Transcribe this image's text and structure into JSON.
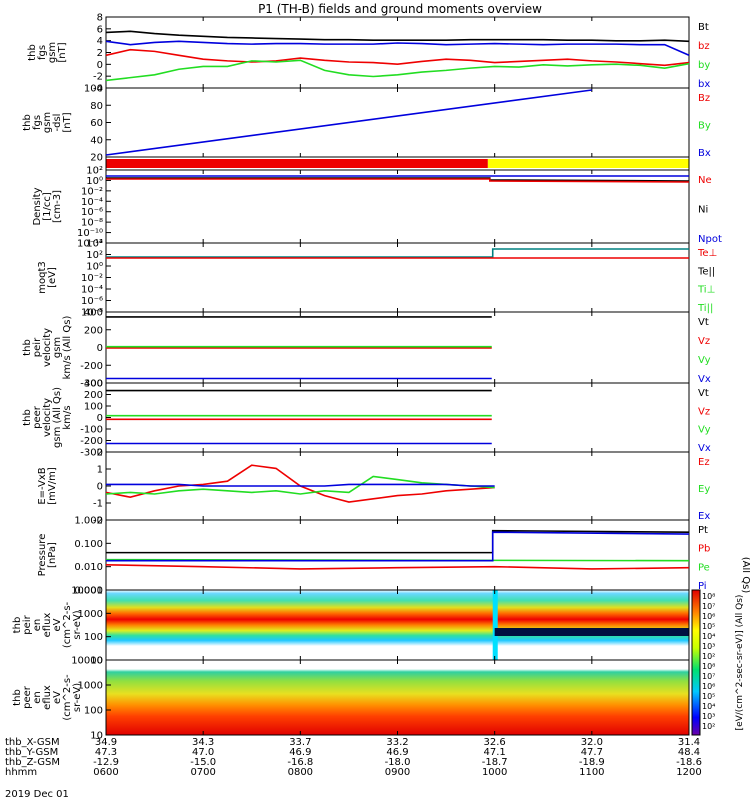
{
  "title": "P1 (TH-B) fields and ground moments overview",
  "date_label": "2019 Dec 01",
  "colors": {
    "black": "#000000",
    "red": "#ee0000",
    "green": "#22dd22",
    "blue": "#0000dd",
    "yellow": "#ffff00",
    "teal": "#008080"
  },
  "ephemeris": {
    "row_labels": [
      "thb_X-GSM",
      "thb_Y-GSM",
      "thb_Z-GSM",
      "hhmm"
    ],
    "columns": [
      {
        "x": "34.9",
        "y": "47.3",
        "z": "-12.9",
        "t": "0600"
      },
      {
        "x": "34.3",
        "y": "47.0",
        "z": "-15.0",
        "t": "0700"
      },
      {
        "x": "33.7",
        "y": "46.9",
        "z": "-16.8",
        "t": "0800"
      },
      {
        "x": "33.2",
        "y": "46.9",
        "z": "-18.0",
        "t": "0900"
      },
      {
        "x": "32.6",
        "y": "47.1",
        "z": "-18.7",
        "t": "1000"
      },
      {
        "x": "32.0",
        "y": "47.7",
        "z": "-18.9",
        "t": "1100"
      },
      {
        "x": "31.4",
        "y": "48.4",
        "z": "-18.6",
        "t": "1200"
      }
    ]
  },
  "colorbar": {
    "ticks": [
      "10⁸",
      "10⁷",
      "10⁶",
      "10⁵",
      "10⁴",
      "10³",
      "10²"
    ],
    "ticks2": [
      "10⁸",
      "10⁷",
      "10⁶",
      "10⁵",
      "10⁴",
      "10³",
      "10²"
    ],
    "label": "[eV/(cm^2-sec-sr-eV)] (All Qs)"
  },
  "chart_data": [
    {
      "type": "line",
      "ylabel": [
        "thb",
        "fgs",
        "gsm",
        "[nT]"
      ],
      "ylim": [
        -4,
        8
      ],
      "yticks": [
        "8",
        "6",
        "4",
        "2",
        "0",
        "-2",
        "-4"
      ],
      "legend": [
        {
          "name": "Bt",
          "color": "#000000"
        },
        {
          "name": "bz",
          "color": "#ee0000"
        },
        {
          "name": "by",
          "color": "#22dd22"
        },
        {
          "name": "bx",
          "color": "#0000dd"
        }
      ],
      "x_hours": [
        6.0,
        6.25,
        6.5,
        6.75,
        7.0,
        7.25,
        7.5,
        7.75,
        8.0,
        8.25,
        8.5,
        8.75,
        9.0,
        9.25,
        9.5,
        9.75,
        10.0,
        10.25,
        10.5,
        10.75,
        11.0,
        11.25,
        11.5,
        11.75,
        12.0
      ],
      "series": [
        {
          "name": "Bt",
          "values": [
            5.6,
            5.8,
            5.4,
            5.1,
            4.9,
            4.7,
            4.6,
            4.5,
            4.4,
            4.3,
            4.3,
            4.2,
            4.2,
            4.2,
            4.2,
            4.3,
            4.3,
            4.3,
            4.3,
            4.2,
            4.2,
            4.1,
            4.1,
            4.2,
            4.0
          ]
        },
        {
          "name": "bz",
          "values": [
            1.5,
            2.5,
            2.2,
            1.5,
            0.8,
            0.5,
            0.3,
            0.5,
            1.0,
            0.6,
            0.3,
            0.2,
            -0.1,
            0.4,
            0.8,
            0.6,
            0.2,
            0.4,
            0.6,
            0.8,
            0.5,
            0.3,
            0.0,
            -0.3,
            0.2
          ]
        },
        {
          "name": "by",
          "values": [
            -3.0,
            -2.5,
            -2.0,
            -1.0,
            -0.5,
            -0.5,
            0.5,
            0.3,
            0.6,
            -1.2,
            -2.0,
            -2.3,
            -2.0,
            -1.5,
            -1.2,
            -0.8,
            -0.5,
            -0.6,
            -0.2,
            -0.4,
            -0.2,
            -0.1,
            -0.3,
            -0.8,
            0.0
          ]
        },
        {
          "name": "bx",
          "values": [
            4.0,
            3.4,
            3.8,
            4.0,
            3.8,
            3.6,
            3.5,
            3.6,
            3.6,
            3.5,
            3.5,
            3.5,
            3.7,
            3.6,
            3.4,
            3.5,
            3.6,
            3.5,
            3.4,
            3.5,
            3.5,
            3.5,
            3.4,
            3.4,
            1.5
          ]
        }
      ]
    },
    {
      "type": "line",
      "ylabel": [
        "thb",
        "fgs",
        "gsm",
        "-dsl",
        "[nT]"
      ],
      "ylim": [
        0,
        100
      ],
      "yticks": [
        "100",
        "80",
        "60",
        "40",
        "20"
      ],
      "legend": [
        {
          "name": "Bz",
          "color": "#ee0000"
        },
        {
          "name": "By",
          "color": "#22dd22"
        },
        {
          "name": "Bx",
          "color": "#0000dd"
        }
      ],
      "series": [
        {
          "name": "Bx",
          "x_hours": [
            6.0,
            11.0
          ],
          "values": [
            0,
            100
          ]
        }
      ]
    },
    {
      "type": "bar",
      "segments": [
        {
          "from": 6.0,
          "to": 9.93,
          "color": "#ee0000"
        },
        {
          "from": 9.93,
          "to": 12.0,
          "color": "#ffff00"
        }
      ]
    },
    {
      "type": "line",
      "scale": "log",
      "ylabel": [
        "Density",
        "[1/cc]",
        "[cm-3]"
      ],
      "yticks": [
        "10²",
        "10⁰",
        "10⁻²",
        "10⁻⁴",
        "10⁻⁶",
        "10⁻⁸",
        "10⁻¹⁰",
        "10⁻¹²"
      ],
      "legend": [
        {
          "name": "Ne",
          "color": "#ee0000"
        },
        {
          "name": "Ni",
          "color": "#000000"
        },
        {
          "name": "Npot",
          "color": "#0000dd"
        }
      ]
    },
    {
      "type": "line",
      "scale": "log",
      "ylabel": [
        "moqt3",
        "[eV]"
      ],
      "yticks": [
        "10⁴",
        "10²",
        "10⁰",
        "10⁻²",
        "10⁻⁴",
        "10⁻⁶",
        "10⁻⁸"
      ],
      "legend": [
        {
          "name": "Te⊥",
          "color": "#ee0000"
        },
        {
          "name": "Te||",
          "color": "#000000"
        },
        {
          "name": "Ti⊥",
          "color": "#22dd22"
        },
        {
          "name": "Ti||",
          "color": "#22dd22"
        }
      ]
    },
    {
      "type": "line",
      "ylabel": [
        "thb",
        "peir",
        "velocity",
        "gsm",
        "km/s (All Qs)"
      ],
      "ylim": [
        -400,
        400
      ],
      "yticks": [
        "400",
        "200",
        "0",
        "-200",
        "-400"
      ],
      "legend": [
        {
          "name": "Vt",
          "color": "#000000"
        },
        {
          "name": "Vz",
          "color": "#ee0000"
        },
        {
          "name": "Vy",
          "color": "#22dd22"
        },
        {
          "name": "Vx",
          "color": "#0000dd"
        }
      ],
      "x_hours": [
        6.0,
        9.97
      ],
      "series": [
        {
          "name": "Vt",
          "values": [
            365,
            365
          ]
        },
        {
          "name": "Vz",
          "values": [
            -5,
            -5
          ]
        },
        {
          "name": "Vy",
          "values": [
            10,
            10
          ]
        },
        {
          "name": "Vx",
          "values": [
            -370,
            -370
          ]
        }
      ]
    },
    {
      "type": "line",
      "ylabel": [
        "thb",
        "peer",
        "velocity",
        "gsm (All Qs)",
        "km/s"
      ],
      "ylim": [
        -350,
        350
      ],
      "yticks": [
        "300",
        "200",
        "100",
        "0",
        "-100",
        "-200",
        "-300"
      ],
      "legend": [
        {
          "name": "Vt",
          "color": "#000000"
        },
        {
          "name": "Vz",
          "color": "#ee0000"
        },
        {
          "name": "Vy",
          "color": "#22dd22"
        },
        {
          "name": "Vx",
          "color": "#0000dd"
        }
      ],
      "x_hours": [
        6.0,
        9.97
      ],
      "series": [
        {
          "name": "Vt",
          "values": [
            290,
            290
          ]
        },
        {
          "name": "Vz",
          "values": [
            -20,
            -20
          ]
        },
        {
          "name": "Vy",
          "values": [
            20,
            20
          ]
        },
        {
          "name": "Vx",
          "values": [
            -280,
            -280
          ]
        }
      ]
    },
    {
      "type": "line",
      "ylabel": [
        "E=-VxB",
        "[mV/m]"
      ],
      "ylim": [
        -2,
        2
      ],
      "yticks": [
        "2",
        "1",
        "0",
        "-1",
        "-2"
      ],
      "legend": [
        {
          "name": "Ez",
          "color": "#ee0000"
        },
        {
          "name": "Ey",
          "color": "#22dd22"
        },
        {
          "name": "Ex",
          "color": "#0000dd"
        }
      ],
      "x_hours": [
        6.0,
        6.25,
        6.5,
        6.75,
        7.0,
        7.25,
        7.5,
        7.75,
        8.0,
        8.25,
        8.5,
        8.75,
        9.0,
        9.25,
        9.5,
        9.75,
        10.0
      ],
      "series": [
        {
          "name": "Ez",
          "values": [
            -0.4,
            -0.7,
            -0.3,
            0.0,
            0.1,
            0.3,
            1.3,
            1.1,
            0.0,
            -0.6,
            -1.0,
            -0.8,
            -0.6,
            -0.5,
            -0.3,
            -0.2,
            -0.1
          ]
        },
        {
          "name": "Ey",
          "values": [
            -0.5,
            -0.4,
            -0.5,
            -0.3,
            -0.2,
            -0.3,
            -0.4,
            -0.3,
            -0.5,
            -0.3,
            -0.4,
            0.6,
            0.4,
            0.2,
            0.1,
            0.0,
            -0.1
          ]
        },
        {
          "name": "Ex",
          "values": [
            0.1,
            0.1,
            0.1,
            0.1,
            0.0,
            0.0,
            0.0,
            0.0,
            0.0,
            0.0,
            0.1,
            0.1,
            0.1,
            0.1,
            0.1,
            0.0,
            0.0
          ]
        }
      ]
    },
    {
      "type": "line",
      "scale": "log",
      "ylabel": [
        "Pressure",
        "[nPa]"
      ],
      "ylim": [
        0.001,
        1.0
      ],
      "yticks": [
        "1.000",
        "0.100",
        "0.010",
        "0.001"
      ],
      "legend": [
        {
          "name": "Pt",
          "color": "#000000"
        },
        {
          "name": "Pb",
          "color": "#ee0000"
        },
        {
          "name": "Pe",
          "color": "#22dd22"
        },
        {
          "name": "Pi",
          "color": "#0000dd"
        }
      ],
      "right_label": "(All Qs)",
      "series": [
        {
          "name": "Pt",
          "x_hours": [
            6.0,
            9.98,
            9.98,
            12.0
          ],
          "values": [
            0.04,
            0.04,
            0.35,
            0.3
          ]
        },
        {
          "name": "Pb",
          "x_hours": [
            6.0,
            7.0,
            8.0,
            9.0,
            10.0,
            11.0,
            12.0
          ],
          "values": [
            0.012,
            0.01,
            0.008,
            0.009,
            0.01,
            0.008,
            0.009
          ]
        },
        {
          "name": "Pe",
          "x_hours": [
            6.0,
            12.0
          ],
          "values": [
            0.02,
            0.018
          ]
        },
        {
          "name": "Pi",
          "x_hours": [
            6.0,
            9.98,
            9.98,
            12.0
          ],
          "values": [
            0.018,
            0.018,
            0.3,
            0.25
          ]
        }
      ]
    },
    {
      "type": "heatmap",
      "ylabel": [
        "thb",
        "peir",
        "en",
        "eflux",
        "eV",
        "(cm^2-s-",
        "sr-eV)"
      ],
      "yticks": [
        "10000",
        "1000",
        "100",
        "10"
      ]
    },
    {
      "type": "heatmap",
      "ylabel": [
        "thb",
        "peer",
        "en",
        "eflux",
        "eV",
        "(cm^2-s-",
        "sr-eV)"
      ],
      "yticks": [
        "10000",
        "1000",
        "100",
        "10"
      ]
    }
  ]
}
